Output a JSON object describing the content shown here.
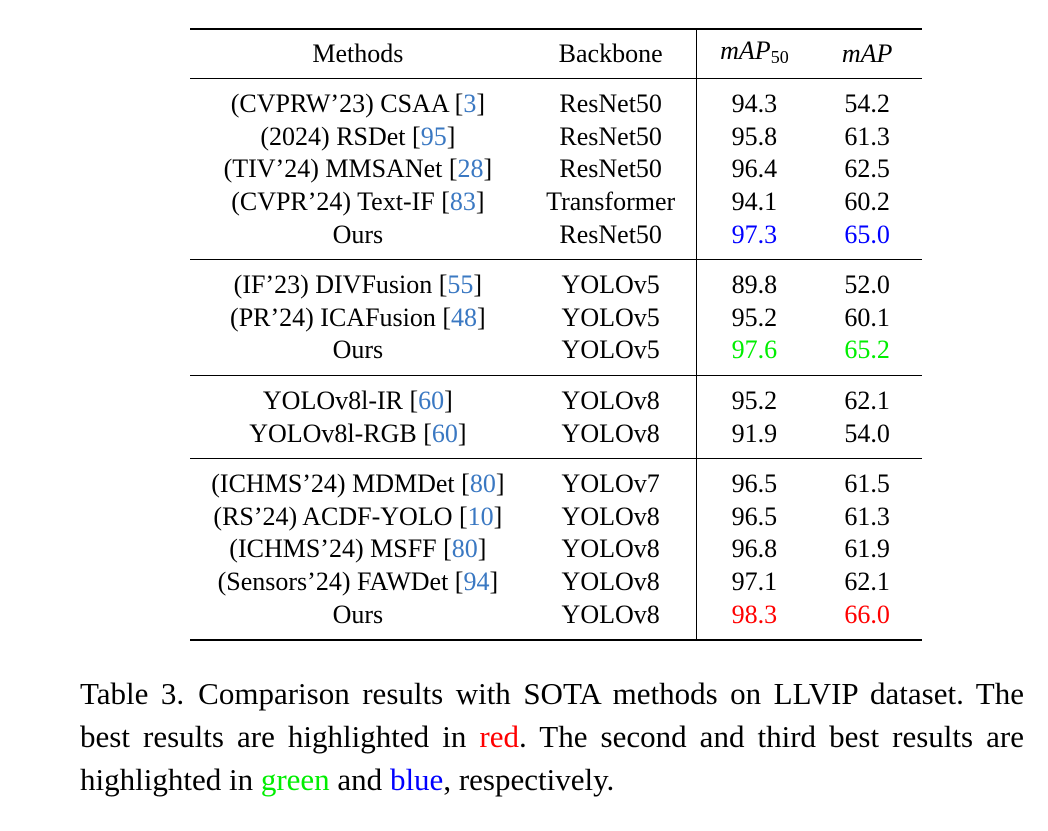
{
  "table": {
    "headers": {
      "methods": "Methods",
      "backbone": "Backbone",
      "map50_main": "mAP",
      "map50_sub": "50",
      "map": "mAP"
    },
    "rows": [
      {
        "prefix": "(CVPRW’23) CSAA [",
        "ref": "3",
        "suffix": "]",
        "backbone": "ResNet50",
        "map50": "94.3",
        "map": "54.2",
        "hl": ""
      },
      {
        "prefix": "(2024) RSDet [",
        "ref": "95",
        "suffix": "]",
        "backbone": "ResNet50",
        "map50": "95.8",
        "map": "61.3",
        "hl": ""
      },
      {
        "prefix": "(TIV’24) MMSANet [",
        "ref": "28",
        "suffix": "]",
        "backbone": "ResNet50",
        "map50": "96.4",
        "map": "62.5",
        "hl": ""
      },
      {
        "prefix": "(CVPR’24) Text-IF [",
        "ref": "83",
        "suffix": "]",
        "backbone": "Transformer",
        "map50": "94.1",
        "map": "60.2",
        "hl": ""
      },
      {
        "prefix": "Ours",
        "ref": "",
        "suffix": "",
        "backbone": "ResNet50",
        "map50": "97.3",
        "map": "65.0",
        "hl": "blue"
      },
      {
        "prefix": "(IF’23) DIVFusion [",
        "ref": "55",
        "suffix": "]",
        "backbone": "YOLOv5",
        "map50": "89.8",
        "map": "52.0",
        "hl": ""
      },
      {
        "prefix": "(PR’24) ICAFusion [",
        "ref": "48",
        "suffix": "]",
        "backbone": "YOLOv5",
        "map50": "95.2",
        "map": "60.1",
        "hl": ""
      },
      {
        "prefix": "Ours",
        "ref": "",
        "suffix": "",
        "backbone": "YOLOv5",
        "map50": "97.6",
        "map": "65.2",
        "hl": "green"
      },
      {
        "prefix": "YOLOv8l-IR [",
        "ref": "60",
        "suffix": "]",
        "backbone": "YOLOv8",
        "map50": "95.2",
        "map": "62.1",
        "hl": ""
      },
      {
        "prefix": "YOLOv8l-RGB [",
        "ref": "60",
        "suffix": "]",
        "backbone": "YOLOv8",
        "map50": "91.9",
        "map": "54.0",
        "hl": ""
      },
      {
        "prefix": "(ICHMS’24) MDMDet [",
        "ref": "80",
        "suffix": "]",
        "backbone": "YOLOv7",
        "map50": "96.5",
        "map": "61.5",
        "hl": ""
      },
      {
        "prefix": "(RS’24) ACDF-YOLO [",
        "ref": "10",
        "suffix": "]",
        "backbone": "YOLOv8",
        "map50": "96.5",
        "map": "61.3",
        "hl": ""
      },
      {
        "prefix": "(ICHMS’24) MSFF [",
        "ref": "80",
        "suffix": "]",
        "backbone": "YOLOv8",
        "map50": "96.8",
        "map": "61.9",
        "hl": ""
      },
      {
        "prefix": "(Sensors’24) FAWDet [",
        "ref": "94",
        "suffix": "]",
        "backbone": "YOLOv8",
        "map50": "97.1",
        "map": "62.1",
        "hl": ""
      },
      {
        "prefix": "Ours",
        "ref": "",
        "suffix": "",
        "backbone": "YOLOv8",
        "map50": "98.3",
        "map": "66.0",
        "hl": "red"
      }
    ]
  },
  "caption": {
    "label": "Table 3.",
    "part1": "Comparison results with SOTA methods on LLVIP dataset. The best results are highlighted in ",
    "red_word": "red",
    "part2": ". The second and third best results are highlighted in ",
    "green_word": "green",
    "part3": " and ",
    "blue_word": "blue",
    "part4": ", respectively."
  },
  "colors": {
    "best": "#ff0000",
    "second": "#00ee00",
    "third": "#0000ff",
    "reference": "#3a78c2"
  }
}
